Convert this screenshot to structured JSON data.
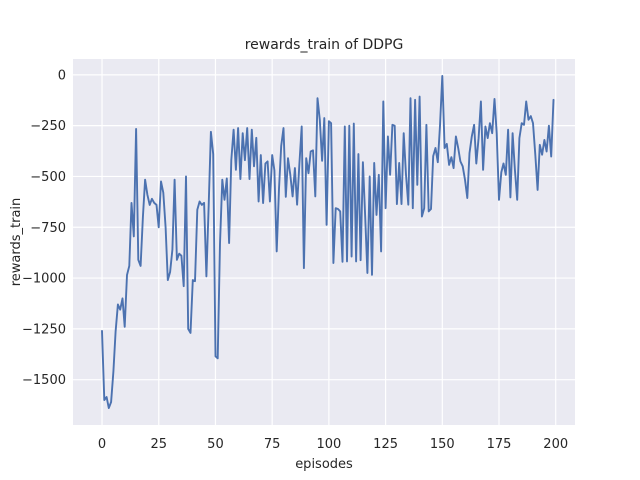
{
  "figure": {
    "background": "#FFFFFF"
  },
  "chart_data": {
    "type": "line",
    "title": "rewards_train of DDPG",
    "xlabel": "episodes",
    "ylabel": "rewards_train",
    "x_start": 0,
    "x_step": 1,
    "xticks": [
      0,
      25,
      50,
      75,
      100,
      125,
      150,
      175,
      200
    ],
    "yticks": [
      0,
      -250,
      -500,
      -750,
      -1000,
      -1250,
      -1500
    ],
    "xlim": [
      -12.8,
      208.5
    ],
    "ylim": [
      -1723,
      78
    ],
    "grid": true,
    "legend": false,
    "plot_bg": "#EAEAF2",
    "grid_color": "#FFFFFF",
    "text_color": "#262626",
    "series": [
      {
        "name": "rewards_train",
        "color": "#4C72B0",
        "values": [
          -1260,
          -1600,
          -1585,
          -1640,
          -1610,
          -1460,
          -1263,
          -1130,
          -1155,
          -1100,
          -1240,
          -985,
          -940,
          -630,
          -795,
          -266,
          -910,
          -940,
          -700,
          -516,
          -590,
          -640,
          -610,
          -630,
          -640,
          -750,
          -525,
          -580,
          -750,
          -1010,
          -970,
          -860,
          -516,
          -910,
          -880,
          -890,
          -1040,
          -500,
          -1250,
          -1270,
          -1010,
          -1015,
          -664,
          -623,
          -640,
          -630,
          -992,
          -640,
          -280,
          -390,
          -1385,
          -1395,
          -830,
          -516,
          -615,
          -510,
          -828,
          -420,
          -270,
          -467,
          -262,
          -513,
          -287,
          -420,
          -262,
          -513,
          -270,
          -450,
          -310,
          -623,
          -395,
          -631,
          -436,
          -426,
          -623,
          -395,
          -470,
          -869,
          -560,
          -350,
          -262,
          -600,
          -410,
          -492,
          -598,
          -459,
          -639,
          -437,
          -254,
          -951,
          -410,
          -484,
          -377,
          -372,
          -598,
          -115,
          -221,
          -423,
          -213,
          -738,
          -228,
          -238,
          -926,
          -656,
          -660,
          -672,
          -920,
          -254,
          -918,
          -250,
          -894,
          -240,
          -918,
          -390,
          -912,
          -430,
          -700,
          -975,
          -500,
          -984,
          -434,
          -689,
          -492,
          -869,
          -131,
          -656,
          -303,
          -492,
          -246,
          -250,
          -636,
          -434,
          -636,
          -287,
          -492,
          -639,
          -115,
          -656,
          -123,
          -541,
          -107,
          -697,
          -656,
          -246,
          -672,
          -660,
          -400,
          -360,
          -430,
          -250,
          -5,
          -360,
          -340,
          -443,
          -405,
          -459,
          -303,
          -360,
          -426,
          -450,
          -516,
          -606,
          -385,
          -303,
          -246,
          -436,
          -311,
          -131,
          -467,
          -254,
          -311,
          -238,
          -287,
          -119,
          -287,
          -615,
          -480,
          -436,
          -492,
          -270,
          -603,
          -287,
          -467,
          -615,
          -311,
          -238,
          -246,
          -131,
          -221,
          -203,
          -238,
          -393,
          -566,
          -344,
          -393,
          -320,
          -377,
          -250,
          -402,
          -123
        ]
      }
    ]
  }
}
